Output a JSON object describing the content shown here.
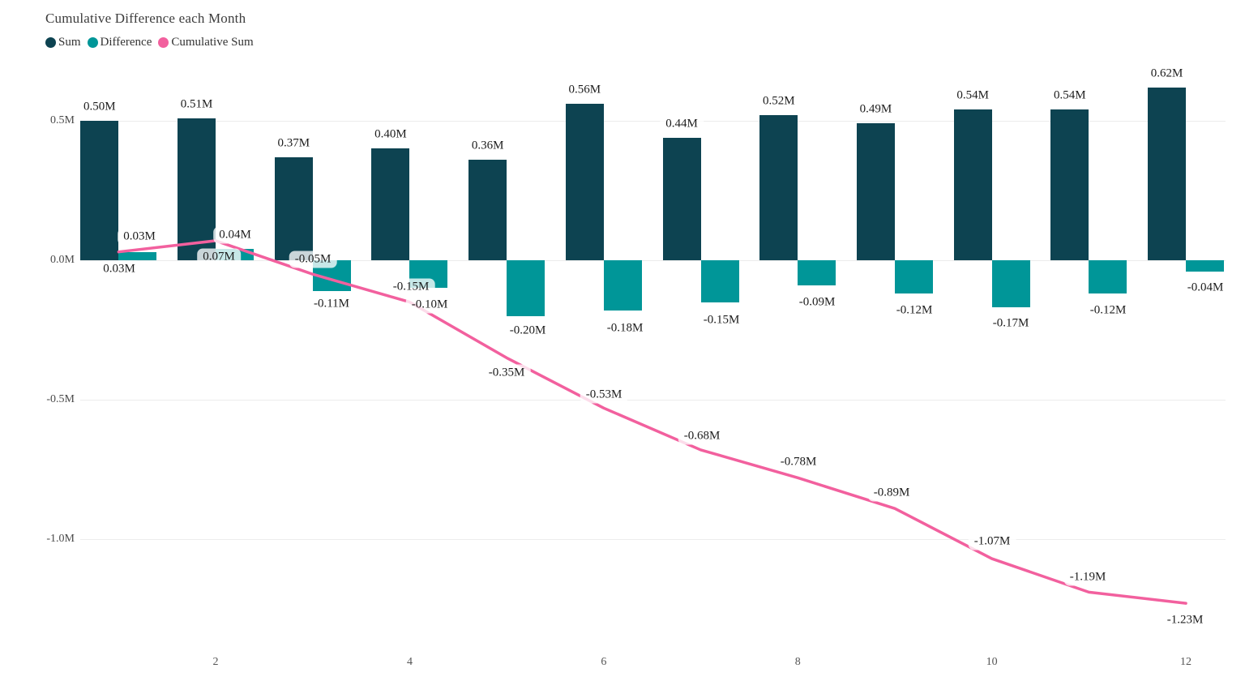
{
  "chart": {
    "title": "Cumulative Difference each Month"
  },
  "chart_data": {
    "type": "bar",
    "subtype": "bar-and-line-combo",
    "title": "Cumulative Difference each Month",
    "xlabel": "",
    "ylabel": "",
    "unit": "M",
    "grid": true,
    "legend_position": "top-left",
    "categories": [
      1,
      2,
      3,
      4,
      5,
      6,
      7,
      8,
      9,
      10,
      11,
      12
    ],
    "x_tick_labels": [
      "2",
      "4",
      "6",
      "8",
      "10",
      "12"
    ],
    "x_tick_months": [
      2,
      4,
      6,
      8,
      10,
      12
    ],
    "y_ticks": [
      {
        "label": "0.5M",
        "value": 0.5
      },
      {
        "label": "0.0M",
        "value": 0.0
      },
      {
        "label": "-0.5M",
        "value": -0.5
      },
      {
        "label": "-1.0M",
        "value": -1.0
      }
    ],
    "ylim": [
      -1.45,
      0.72
    ],
    "series": [
      {
        "name": "Sum",
        "type": "bar",
        "color": "#0d4351",
        "values": [
          0.5,
          0.51,
          0.37,
          0.4,
          0.36,
          0.56,
          0.44,
          0.52,
          0.49,
          0.54,
          0.54,
          0.62
        ],
        "labels": [
          "0.50M",
          "0.51M",
          "0.37M",
          "0.40M",
          "0.36M",
          "0.56M",
          "0.44M",
          "0.52M",
          "0.49M",
          "0.54M",
          "0.54M",
          "0.62M"
        ]
      },
      {
        "name": "Difference",
        "type": "bar",
        "color": "#009698",
        "values": [
          0.03,
          0.04,
          -0.11,
          -0.1,
          -0.2,
          -0.18,
          -0.15,
          -0.09,
          -0.12,
          -0.17,
          -0.12,
          -0.04
        ],
        "labels": [
          "0.03M",
          "0.04M",
          "-0.11M",
          "-0.10M",
          "-0.20M",
          "-0.18M",
          "-0.15M",
          "-0.09M",
          "-0.12M",
          "-0.17M",
          "-0.12M",
          "-0.04M"
        ]
      },
      {
        "name": "Cumulative Sum",
        "type": "line",
        "color": "#f2609e",
        "values": [
          0.03,
          0.07,
          -0.05,
          -0.15,
          -0.35,
          -0.53,
          -0.68,
          -0.78,
          -0.89,
          -1.07,
          -1.19,
          -1.23
        ],
        "labels": [
          "0.03M",
          "0.07M",
          "-0.05M",
          "-0.15M",
          "-0.35M",
          "-0.53M",
          "-0.68M",
          "-0.78M",
          "-0.89M",
          "-1.07M",
          "-1.19M",
          "-1.23M"
        ]
      }
    ]
  }
}
